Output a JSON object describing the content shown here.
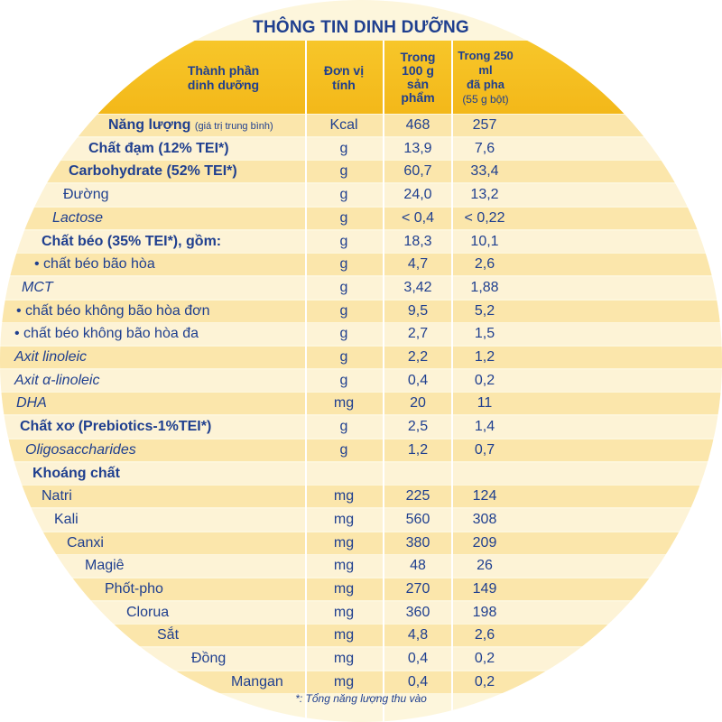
{
  "title": "THÔNG TIN DINH DƯỠNG",
  "headers": {
    "component": [
      "Thành phần",
      "dinh dưỡng"
    ],
    "unit": [
      "Đơn vị",
      "tính"
    ],
    "per100": [
      "Trong",
      "100 g",
      "sản",
      "phẩm"
    ],
    "per250": [
      "Trong 250 ml",
      "đã pha"
    ],
    "per250_sub": "(55 g bột)"
  },
  "rows": [
    {
      "name": "Năng lượng",
      "note": "(giá trị trung bình)",
      "unit": "Kcal",
      "per100": "468",
      "per250": "257"
    },
    {
      "name": "Chất đạm (12% TEI*)",
      "unit": "g",
      "per100": "13,9",
      "per250": "7,6"
    },
    {
      "name": "Carbohydrate (52% TEI*)",
      "unit": "g",
      "per100": "60,7",
      "per250": "33,4"
    },
    {
      "name": "Đường",
      "unit": "g",
      "per100": "24,0",
      "per250": "13,2"
    },
    {
      "name": "Lactose",
      "unit": "g",
      "per100": "< 0,4",
      "per250": "< 0,22"
    },
    {
      "name": "Chất béo (35% TEI*), gồm:",
      "unit": "g",
      "per100": "18,3",
      "per250": "10,1"
    },
    {
      "name": "• chất béo bão hòa",
      "unit": "g",
      "per100": "4,7",
      "per250": "2,6"
    },
    {
      "name": "MCT",
      "unit": "g",
      "per100": "3,42",
      "per250": "1,88"
    },
    {
      "name": "• chất béo không bão hòa đơn",
      "unit": "g",
      "per100": "9,5",
      "per250": "5,2"
    },
    {
      "name": "• chất béo không bão hòa đa",
      "unit": "g",
      "per100": "2,7",
      "per250": "1,5"
    },
    {
      "name": "Axit linoleic",
      "unit": "g",
      "per100": "2,2",
      "per250": "1,2"
    },
    {
      "name": "Axit α-linoleic",
      "unit": "g",
      "per100": "0,4",
      "per250": "0,2"
    },
    {
      "name": "DHA",
      "unit": "mg",
      "per100": "20",
      "per250": "11"
    },
    {
      "name": "Chất xơ (Prebiotics-1%TEI*)",
      "unit": "g",
      "per100": "2,5",
      "per250": "1,4"
    },
    {
      "name": "Oligosaccharides",
      "unit": "g",
      "per100": "1,2",
      "per250": "0,7"
    },
    {
      "name": "Khoáng chất",
      "unit": "",
      "per100": "",
      "per250": ""
    },
    {
      "name": "Natri",
      "unit": "mg",
      "per100": "225",
      "per250": "124"
    },
    {
      "name": "Kali",
      "unit": "mg",
      "per100": "560",
      "per250": "308"
    },
    {
      "name": "Canxi",
      "unit": "mg",
      "per100": "380",
      "per250": "209"
    },
    {
      "name": "Magiê",
      "unit": "mg",
      "per100": "48",
      "per250": "26"
    },
    {
      "name": "Phốt-pho",
      "unit": "mg",
      "per100": "270",
      "per250": "149"
    },
    {
      "name": "Clorua",
      "unit": "mg",
      "per100": "360",
      "per250": "198"
    },
    {
      "name": "Sắt",
      "unit": "mg",
      "per100": "4,8",
      "per250": "2,6"
    },
    {
      "name": "Đồng",
      "unit": "mg",
      "per100": "0,4",
      "per250": "0,2"
    },
    {
      "name": "Mangan",
      "unit": "mg",
      "per100": "0,4",
      "per250": "0,2"
    }
  ],
  "footnote": "*: Tổng năng lượng thu vào"
}
